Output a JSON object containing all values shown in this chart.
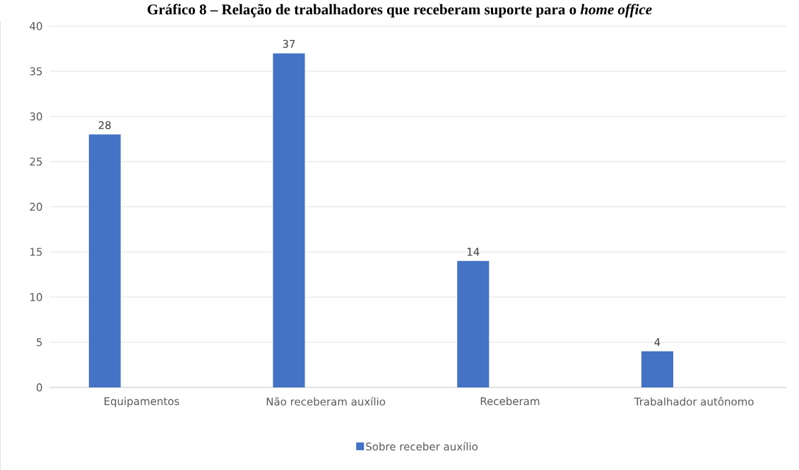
{
  "chart_data": {
    "type": "bar",
    "title": "Gráfico 8 – Relação de trabalhadores que receberam suporte para o *home office*",
    "categories": [
      "Equipamentos",
      "Não receberam auxílio",
      "Receberam",
      "Trabalhador autônomo"
    ],
    "series": [
      {
        "name": "Sobre receber auxílio",
        "color": "#4472c4",
        "values": [
          28,
          37,
          14,
          4
        ]
      }
    ],
    "ylim": [
      0,
      40
    ],
    "yticks": [
      0,
      5,
      10,
      15,
      20,
      25,
      30,
      35,
      40
    ],
    "grid": "y",
    "legend": "bottom",
    "data_labels": true
  }
}
